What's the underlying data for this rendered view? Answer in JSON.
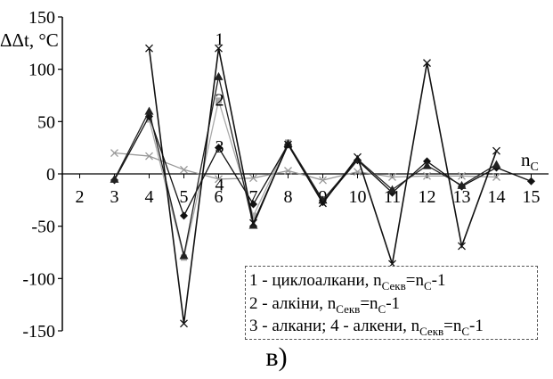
{
  "chart_data": {
    "type": "line",
    "ylabel": "ΔΔt, °C",
    "xlabel": "n",
    "xlabel_sub": "C",
    "ylim": [
      -150,
      150
    ],
    "yticks": [
      -150,
      -100,
      -50,
      0,
      50,
      100,
      150
    ],
    "xlim": [
      1.5,
      15.5
    ],
    "xticks": [
      2,
      3,
      4,
      5,
      6,
      7,
      8,
      9,
      10,
      11,
      12,
      13,
      14,
      15
    ],
    "series": [
      {
        "name": "1",
        "color": "#111111",
        "marker": "x",
        "x": [
          4,
          5,
          6,
          7,
          8,
          9,
          10,
          11,
          12,
          13,
          14
        ],
        "y": [
          120,
          -143,
          120,
          -47,
          28,
          -28,
          16,
          -86,
          106,
          -69,
          22
        ]
      },
      {
        "name": "2",
        "color": "#222222",
        "marker": "triangle",
        "x": [
          3,
          4,
          5,
          6,
          7,
          8,
          9,
          10,
          11,
          12,
          13,
          14
        ],
        "y": [
          -5,
          60,
          -78,
          93,
          -49,
          29,
          -25,
          14,
          -15,
          8,
          -11,
          9
        ]
      },
      {
        "name": "3",
        "color": "#111111",
        "marker": "diamond",
        "x": [
          3,
          4,
          5,
          6,
          7,
          8,
          9,
          10,
          11,
          12,
          13,
          14,
          15
        ],
        "y": [
          -6,
          55,
          -40,
          25,
          -29,
          28,
          -27,
          13,
          -18,
          12,
          -12,
          6,
          -7
        ]
      },
      {
        "name": "4",
        "color": "#999999",
        "marker": "x",
        "x": [
          3,
          4,
          5,
          6,
          7,
          8,
          9,
          10,
          11,
          12,
          13,
          14
        ],
        "y": [
          20,
          17,
          4,
          -5,
          -4,
          3,
          -6,
          2,
          -3,
          -2,
          -2,
          -3
        ]
      },
      {
        "name": "",
        "color": "#aaaaaa",
        "marker": "square",
        "x": [
          4,
          5,
          6,
          7,
          8
        ],
        "y": [
          52,
          -80,
          70,
          -40,
          30
        ]
      }
    ],
    "series_labels": [
      {
        "text": "1",
        "x": 6,
        "y": 125
      },
      {
        "text": "2",
        "x": 6,
        "y": 67
      },
      {
        "text": "3",
        "x": 6,
        "y": 22
      },
      {
        "text": "4",
        "x": 6,
        "y": -14
      }
    ]
  },
  "legend": {
    "line1": {
      "text": "1 - циклоалкани, n",
      "sub1": "Секв",
      "mid": "=n",
      "sub2": "С",
      "end": "-1"
    },
    "line2": {
      "text": "2 - алкіни, n",
      "sub1": "Секв",
      "mid": "=n",
      "sub2": "С",
      "end": "-1"
    },
    "line3": {
      "text": "3 - алкани;  4 - алкени, n",
      "sub1": "Секв",
      "mid": "=n",
      "sub2": "С",
      "end": "-1"
    }
  },
  "caption": "в)"
}
